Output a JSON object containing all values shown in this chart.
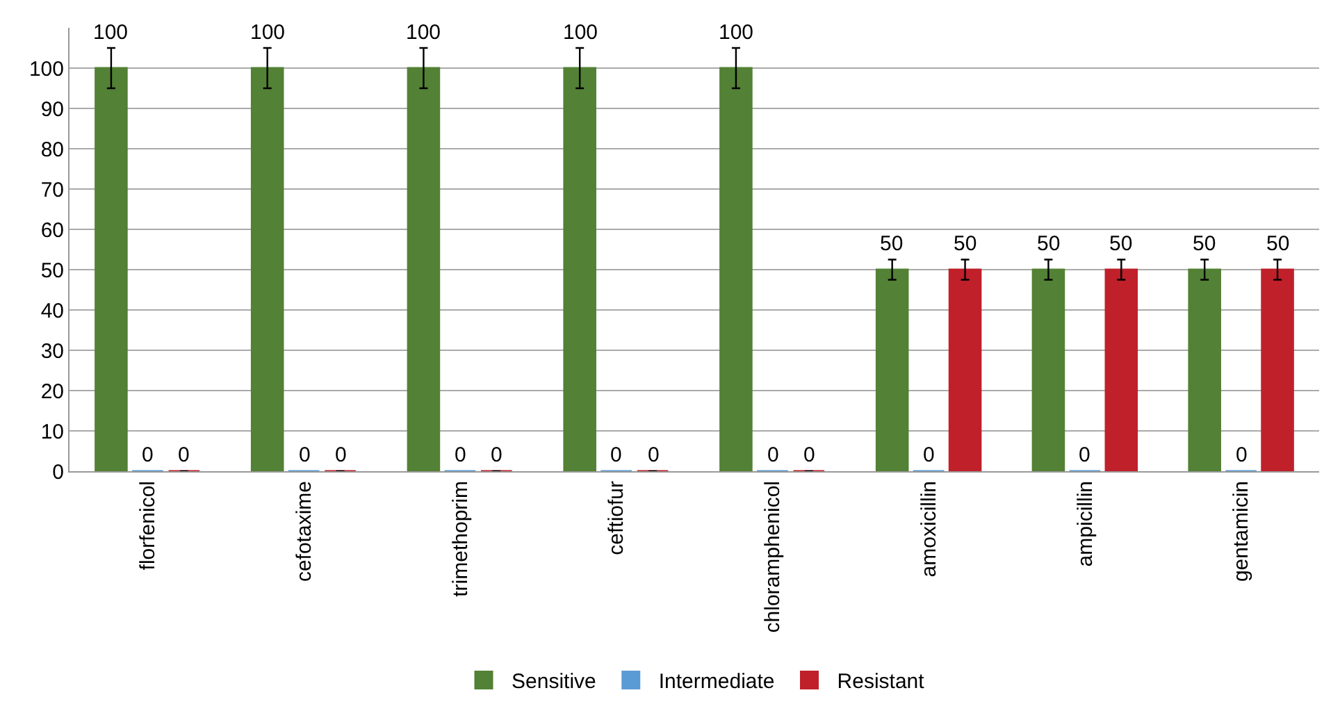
{
  "chart_data": {
    "type": "bar",
    "categories": [
      "florfenicol",
      "cefotaxime",
      "trimethoprim",
      "ceftiofur",
      "chloramphenicol",
      "amoxicillin",
      "ampicillin",
      "gentamicin"
    ],
    "series": [
      {
        "name": "Sensitive",
        "color": "#538135",
        "values": [
          100,
          100,
          100,
          100,
          100,
          50,
          50,
          50
        ],
        "errors": [
          5,
          5,
          5,
          5,
          5,
          2.5,
          2.5,
          2.5
        ]
      },
      {
        "name": "Intermediate",
        "color": "#5b9bd5",
        "values": [
          0,
          0,
          0,
          0,
          0,
          0,
          0,
          0
        ]
      },
      {
        "name": "Resistant",
        "color": "#c0202a",
        "values": [
          0,
          0,
          0,
          0,
          0,
          50,
          50,
          50
        ],
        "errors": [
          null,
          null,
          null,
          null,
          null,
          2.5,
          2.5,
          2.5
        ]
      }
    ],
    "ylim": [
      0,
      110
    ],
    "yticks": [
      0,
      10,
      20,
      30,
      40,
      50,
      60,
      70,
      80,
      90,
      100
    ],
    "grid": "y",
    "legend": "bottom",
    "data_labels": true
  }
}
